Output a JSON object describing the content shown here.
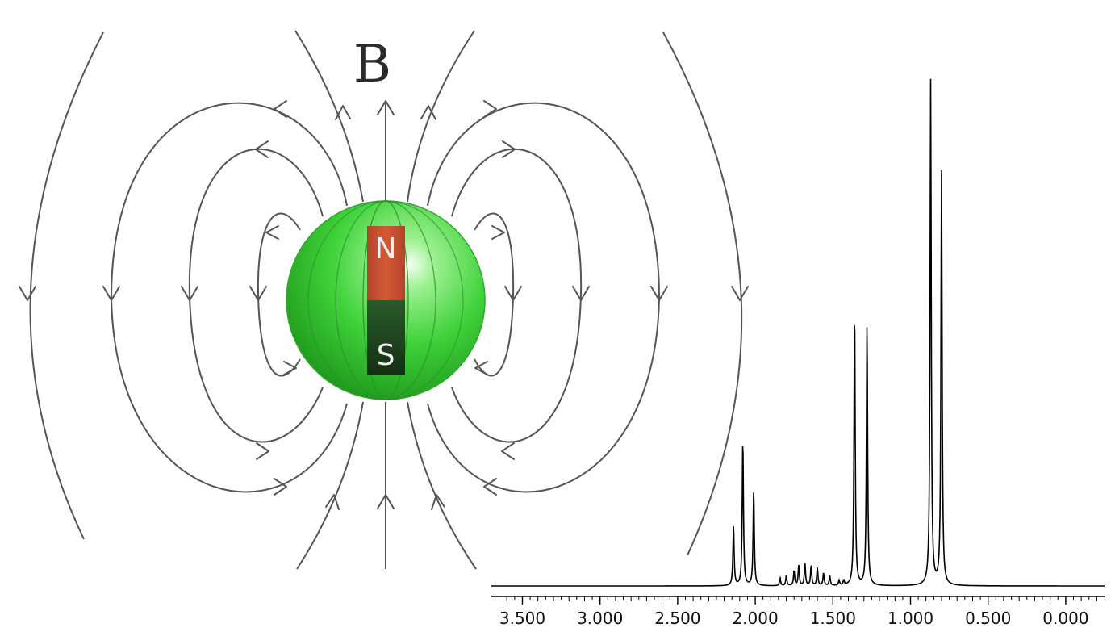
{
  "magnet_diagram": {
    "field_label": "B",
    "north_pole_label": "N",
    "south_pole_label": "S",
    "colors": {
      "sphere": "#3fd23a",
      "north": "#c8502f",
      "south": "#1d3d1d",
      "field_lines": "#555555"
    }
  },
  "chart_data": {
    "type": "line",
    "title": "",
    "xlabel": "",
    "ylabel": "",
    "x_reversed": true,
    "xlim": [
      3.7,
      -0.25
    ],
    "tick_labels": [
      "3.500",
      "3.000",
      "2.500",
      "2.000",
      "1.500",
      "1.000",
      "0.500",
      "0.000"
    ],
    "tick_values": [
      3.5,
      3.0,
      2.5,
      2.0,
      1.5,
      1.0,
      0.5,
      0.0
    ],
    "y_axis_visible": false,
    "grid": false,
    "peaks": [
      {
        "x": 2.14,
        "h": 0.12
      },
      {
        "x": 2.08,
        "h": 0.29
      },
      {
        "x": 2.01,
        "h": 0.19
      },
      {
        "x": 1.84,
        "h": 0.015
      },
      {
        "x": 1.8,
        "h": 0.02
      },
      {
        "x": 1.75,
        "h": 0.03
      },
      {
        "x": 1.72,
        "h": 0.04
      },
      {
        "x": 1.68,
        "h": 0.045
      },
      {
        "x": 1.64,
        "h": 0.04
      },
      {
        "x": 1.6,
        "h": 0.035
      },
      {
        "x": 1.56,
        "h": 0.025
      },
      {
        "x": 1.52,
        "h": 0.02
      },
      {
        "x": 1.46,
        "h": 0.01
      },
      {
        "x": 1.43,
        "h": 0.01
      },
      {
        "x": 1.36,
        "h": 0.55
      },
      {
        "x": 1.28,
        "h": 0.52
      },
      {
        "x": 0.87,
        "h": 1.0
      },
      {
        "x": 0.8,
        "h": 0.82
      }
    ]
  }
}
